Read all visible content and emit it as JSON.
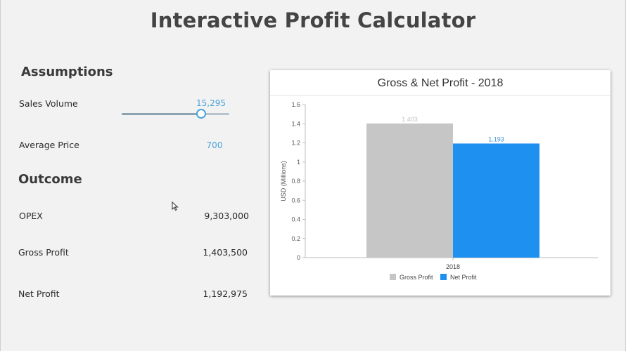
{
  "page": {
    "title": "Interactive Profit Calculator"
  },
  "assumptions": {
    "heading": "Assumptions",
    "sales_volume": {
      "label": "Sales Volume",
      "value": "15,295",
      "slider_fraction": 0.74
    },
    "average_price": {
      "label": "Average Price",
      "value": "700"
    }
  },
  "outcome": {
    "heading": "Outcome",
    "rows": [
      {
        "label": "OPEX",
        "value": "9,303,000"
      },
      {
        "label": "Gross Profit",
        "value": "1,403,500"
      },
      {
        "label": "Net Profit",
        "value": "1,192,975"
      }
    ]
  },
  "icons": {
    "cursor": "mouse-pointer-icon"
  },
  "colors": {
    "accent": "#4aa3d9",
    "gross_bar": "#c6c6c6",
    "net_bar": "#1e90f0"
  },
  "chart_data": {
    "type": "bar",
    "title": "Gross & Net Profit - 2018",
    "ylabel": "USD (Millions)",
    "xlabel": "",
    "categories": [
      "2018"
    ],
    "ylim": [
      0,
      1.6
    ],
    "yticks": [
      "0",
      "0.2",
      "0.4",
      "0.6",
      "0.8",
      "1",
      "1.2",
      "1.4",
      "1.6"
    ],
    "series": [
      {
        "name": "Gross Profit",
        "values": [
          1.403
        ],
        "label": "1.403",
        "color": "#c6c6c6",
        "label_color": "#c2c2c2"
      },
      {
        "name": "Net Profit",
        "values": [
          1.193
        ],
        "label": "1.193",
        "color": "#1e90f0",
        "label_color": "#3c96d8"
      }
    ],
    "legend_position": "bottom",
    "grid": false
  }
}
